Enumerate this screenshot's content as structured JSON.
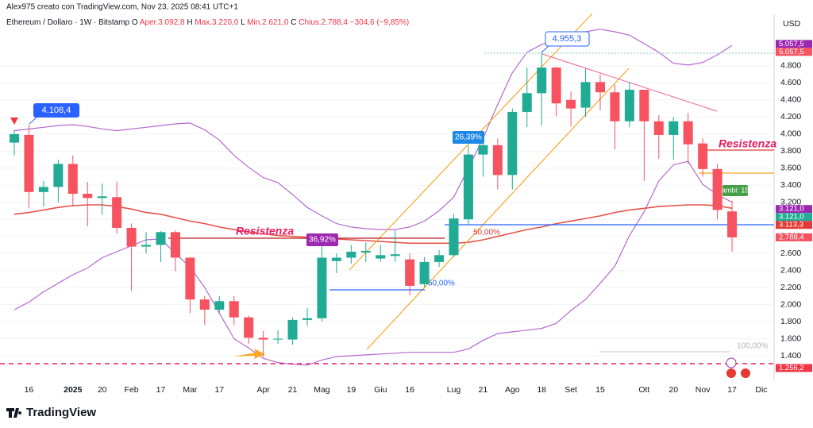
{
  "header": {
    "credit": "Alex975 creato con TradingView.com, Nov 23, 2025 08:41 UTC+1",
    "symbol": "Ethereum / Dollaro · 1W · Bitstamp",
    "legend": [
      "O",
      "Aper.3.092,8",
      "H",
      "Max.3.220,0",
      "L",
      "Min.2.621,0",
      "C",
      "Chius.2.788,4",
      "−304,6 (−9,85%)"
    ]
  },
  "footer": {
    "brand": "TradingView"
  },
  "chart_data": {
    "type": "candlestick",
    "y_axis_label": "USD",
    "up_color": "#22ab94",
    "down_color": "#f7525f",
    "categories": [
      null,
      "16",
      null,
      null,
      "2025",
      null,
      "20",
      null,
      "Feb",
      null,
      "17",
      null,
      "Mar",
      null,
      "17",
      null,
      null,
      "Apr",
      null,
      "21",
      null,
      "Mag",
      null,
      "19",
      null,
      "Giu",
      null,
      "16",
      null,
      null,
      "Lug",
      null,
      "21",
      null,
      "Ago",
      null,
      "18",
      null,
      "Set",
      null,
      "15",
      null,
      null,
      "Ott",
      null,
      "20",
      null,
      "Nov",
      null,
      "17",
      null,
      "Dic"
    ],
    "open": [
      3900,
      3990,
      3320,
      3380,
      3650,
      3300,
      3250,
      3260,
      2900,
      2680,
      2700,
      2850,
      2550,
      2060,
      1940,
      2040,
      1850,
      1610,
      1590,
      1590,
      1820,
      1840,
      2510,
      2550,
      2610,
      2540,
      2570,
      2530,
      2240,
      2500,
      2580,
      3000,
      3760,
      3870,
      3520,
      4260,
      4480,
      4780,
      4400,
      4310,
      4610,
      4490,
      4150,
      4520,
      4150,
      3990,
      4150,
      3890,
      3590,
      3092.8,
      null,
      null
    ],
    "high": [
      4050,
      4108.4,
      3450,
      3700,
      3750,
      3440,
      3420,
      3440,
      2950,
      2850,
      2860,
      2870,
      2560,
      2100,
      2100,
      2100,
      1870,
      1690,
      1700,
      1850,
      1960,
      2700,
      2600,
      2700,
      2730,
      2700,
      2870,
      2600,
      2560,
      2640,
      3060,
      3860,
      3940,
      3950,
      4300,
      4780,
      4955.3,
      4790,
      4500,
      4770,
      4700,
      4580,
      4610,
      4520,
      4220,
      4200,
      4250,
      3950,
      3650,
      3220,
      null,
      null
    ],
    "low": [
      3750,
      3130,
      3150,
      3200,
      3150,
      2920,
      3050,
      2830,
      2160,
      2600,
      2500,
      2390,
      1900,
      1760,
      1900,
      1760,
      1540,
      1385,
      1540,
      1530,
      1750,
      1800,
      2370,
      2480,
      2500,
      2500,
      2500,
      2110,
      2200,
      2440,
      2560,
      2940,
      3500,
      3350,
      3350,
      4080,
      4100,
      4210,
      4090,
      4200,
      4280,
      3820,
      4080,
      3450,
      3710,
      3700,
      3650,
      3500,
      3000,
      2621,
      null,
      null
    ],
    "close": [
      4000,
      3320,
      3380,
      3650,
      3300,
      3250,
      3270,
      2900,
      2680,
      2700,
      2850,
      2550,
      2060,
      1940,
      2040,
      1850,
      1610,
      1590,
      1600,
      1820,
      1840,
      2550,
      2550,
      2620,
      2630,
      2580,
      2590,
      2220,
      2500,
      2580,
      3010,
      3760,
      3870,
      3520,
      4260,
      4480,
      4780,
      4360,
      4300,
      4610,
      4490,
      4150,
      4520,
      4150,
      3990,
      4150,
      3880,
      3590,
      3110,
      2788.4,
      null,
      null
    ],
    "series": [
      {
        "color": "#b36ad0",
        "values": [
          4040,
          4060,
          4080,
          4100,
          4110,
          4090,
          4060,
          4040,
          4060,
          4080,
          4100,
          4120,
          4130,
          4050,
          3930,
          3750,
          3610,
          3490,
          3430,
          3290,
          3140,
          3040,
          2950,
          2910,
          2890,
          2880,
          2880,
          2910,
          2980,
          3100,
          3260,
          3600,
          3950,
          4350,
          4720,
          4960,
          5050,
          5110,
          5150,
          5200,
          5230,
          5200,
          5160,
          5060,
          4960,
          4830,
          4810,
          4840,
          4930,
          5040,
          null,
          null
        ]
      },
      {
        "color": "#b36ad0",
        "values": [
          1940,
          2030,
          2150,
          2250,
          2350,
          2430,
          2550,
          2620,
          2690,
          2760,
          2770,
          2600,
          2440,
          2200,
          1900,
          1600,
          1490,
          1370,
          1320,
          1300,
          1290,
          1350,
          1390,
          1400,
          1410,
          1420,
          1430,
          1440,
          1440,
          1440,
          1440,
          1480,
          1580,
          1660,
          1680,
          1700,
          1720,
          1780,
          1930,
          2060,
          2250,
          2450,
          2810,
          3090,
          3450,
          3640,
          3680,
          3410,
          3290,
          3200,
          null,
          null
        ]
      },
      {
        "color": "#e5534b",
        "values": [
          3060,
          3080,
          3110,
          3140,
          3160,
          3170,
          3170,
          3150,
          3120,
          3080,
          3060,
          3020,
          2980,
          2950,
          2910,
          2880,
          2850,
          2830,
          2810,
          2800,
          2790,
          2780,
          2770,
          2760,
          2750,
          2740,
          2730,
          2720,
          2720,
          2720,
          2720,
          2730,
          2760,
          2800,
          2840,
          2880,
          2910,
          2950,
          2980,
          3010,
          3040,
          3080,
          3110,
          3130,
          3150,
          3160,
          3170,
          3170,
          3160,
          3130,
          null,
          null
        ]
      }
    ],
    "ylim": [
      1195,
      5405
    ],
    "yticks": [
      {
        "value": 1400,
        "label": "1.400"
      },
      {
        "value": 1600,
        "label": "1.600"
      },
      {
        "value": 1800,
        "label": "1.800"
      },
      {
        "value": 2000,
        "label": "2.000"
      },
      {
        "value": 2200,
        "label": "2.200"
      },
      {
        "value": 2400,
        "label": "2.400"
      },
      {
        "value": 2600,
        "label": "2.600"
      },
      {
        "value": 2800,
        "label": "2.800"
      },
      {
        "value": 3000,
        "label": "3.000"
      },
      {
        "value": 3200,
        "label": "3.200"
      },
      {
        "value": 3400,
        "label": "3.400"
      },
      {
        "value": 3600,
        "label": "3.600"
      },
      {
        "value": 3800,
        "label": "3.800"
      },
      {
        "value": 4000,
        "label": "4.000"
      },
      {
        "value": 4200,
        "label": "4.200"
      },
      {
        "value": 4400,
        "label": "4.400"
      },
      {
        "value": 4600,
        "label": "4.600"
      },
      {
        "value": 4800,
        "label": "4.800"
      }
    ],
    "price_tags": [
      {
        "value": 5057.5,
        "label": "5.057,5",
        "color": "#9c27b0"
      },
      {
        "value": 5057.5,
        "label": "5.057,5",
        "color": "#f7525f"
      },
      {
        "value": 3121,
        "label": "3.121,0",
        "color": "#9c27b0"
      },
      {
        "value": 3121,
        "label": "3.121,0",
        "color": "#22ab94"
      },
      {
        "value": 3113.3,
        "label": "3.113,3",
        "color": "#e53935"
      },
      {
        "value": 2788.4,
        "label": "2.788,4",
        "color": "#f7525f"
      },
      {
        "value": 1256.2,
        "label": "1.256,2",
        "color": "#f23645"
      }
    ],
    "annotations": {
      "high_1": "4.108,4",
      "high_2": "4.955,3",
      "pct_1": "26,39%",
      "pct_2": "36,92%",
      "fib_1": "50,00%",
      "fib_2": "50,00%",
      "fib_3": "100,00%",
      "resistance_1": "Resistenza",
      "resistance_2": "Resistenza",
      "changes": "ambi: 15"
    }
  }
}
